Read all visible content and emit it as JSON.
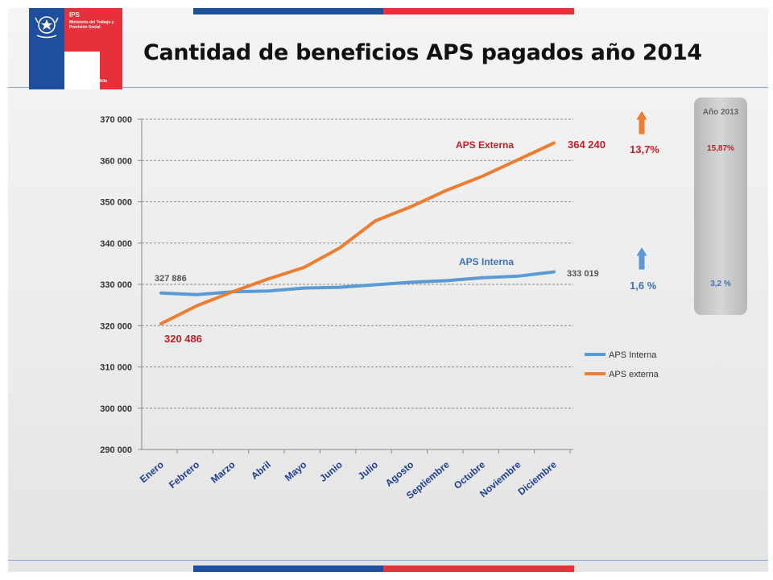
{
  "header": {
    "title": "Cantidad de beneficios APS pagados año 2014",
    "logo": {
      "acronym": "IPS",
      "ministry": "Ministerio del Trabajo y Previsión Social",
      "government": "Gobierno de Chile",
      "crest": "chile-coat-of-arms-icon"
    }
  },
  "colors": {
    "interna": "#5b9bd5",
    "externa": "#ed7d31",
    "red_label": "#c0202a",
    "blue_label": "#3e73b8",
    "stripe_blue": "#1f4f9c",
    "stripe_red": "#e8303a"
  },
  "chart_data": {
    "type": "line",
    "categories": [
      "Enero",
      "Febrero",
      "Marzo",
      "Abril",
      "Mayo",
      "Junio",
      "Julio",
      "Agosto",
      "Septiembre",
      "Octubre",
      "Noviembre",
      "Diciembre"
    ],
    "ylim": [
      290000,
      370000
    ],
    "yticks": [
      "290 000",
      "300 000",
      "310 000",
      "320 000",
      "330 000",
      "340 000",
      "350 000",
      "360 000",
      "370 000"
    ],
    "grid": "horizontal dashed",
    "legend_position": "right",
    "legend": [
      "APS Interna",
      "APS externa"
    ],
    "series": [
      {
        "name": "APS Interna",
        "values": [
          327886,
          327500,
          328200,
          328400,
          329100,
          329300,
          329900,
          330500,
          330900,
          331600,
          332000,
          333019
        ],
        "start_label": "327  886",
        "end_label": "333  019",
        "series_label": "APS Interna",
        "growth": "1,6 %"
      },
      {
        "name": "APS externa",
        "values": [
          320486,
          324800,
          328200,
          331300,
          334100,
          338800,
          345400,
          348800,
          352800,
          356200,
          360200,
          364240
        ],
        "start_label": "320 486",
        "end_label": "364 240",
        "series_label": "APS Externa",
        "growth": "13,7%"
      }
    ]
  },
  "year_2013": {
    "title": "Año 2013",
    "externa": "15,87%",
    "interna": "3,2 %"
  }
}
